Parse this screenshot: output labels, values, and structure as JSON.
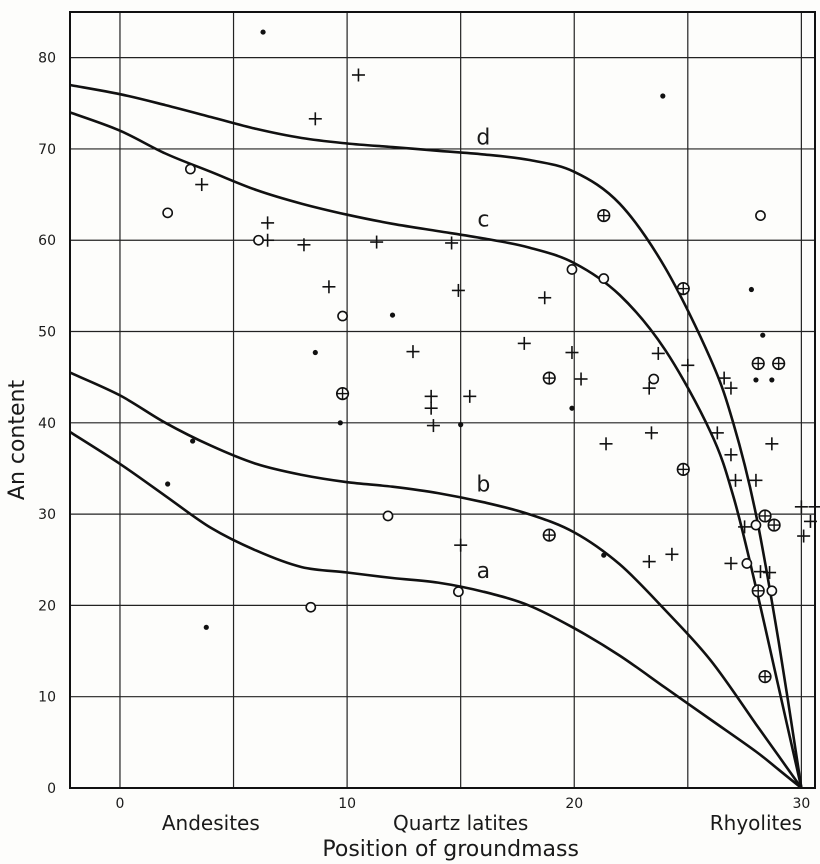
{
  "chart_data": {
    "type": "scatter",
    "xlabel": "Position of groundmass",
    "ylabel": "An content",
    "xlim": [
      -2.2,
      30.6
    ],
    "ylim": [
      0,
      85
    ],
    "xticks": [
      0,
      10,
      20,
      30
    ],
    "yticks": [
      0,
      10,
      20,
      30,
      40,
      50,
      60,
      70,
      80
    ],
    "grid": true,
    "categories": [
      {
        "label": "Andesites",
        "x": 4
      },
      {
        "label": "Quartz latites",
        "x": 15
      },
      {
        "label": "Rhyolites",
        "x": 28
      }
    ],
    "curves": [
      {
        "name": "a",
        "label_at": {
          "x": 16,
          "y": 23
        },
        "points": [
          [
            -2.2,
            39
          ],
          [
            0,
            35.5
          ],
          [
            2,
            32
          ],
          [
            4,
            28.5
          ],
          [
            6,
            26
          ],
          [
            8,
            24.2
          ],
          [
            10,
            23.6
          ],
          [
            12,
            23
          ],
          [
            14,
            22.5
          ],
          [
            16,
            21.5
          ],
          [
            18,
            20
          ],
          [
            20,
            17.5
          ],
          [
            22,
            14.5
          ],
          [
            24,
            11
          ],
          [
            26,
            7.5
          ],
          [
            28,
            4
          ],
          [
            29,
            2
          ],
          [
            30,
            0
          ]
        ]
      },
      {
        "name": "b",
        "label_at": {
          "x": 16,
          "y": 32.5
        },
        "points": [
          [
            -2.2,
            45.5
          ],
          [
            0,
            43
          ],
          [
            2,
            40
          ],
          [
            4,
            37.5
          ],
          [
            6,
            35.5
          ],
          [
            8,
            34.3
          ],
          [
            10,
            33.5
          ],
          [
            12,
            33
          ],
          [
            14,
            32.3
          ],
          [
            16,
            31.3
          ],
          [
            18,
            30
          ],
          [
            20,
            28
          ],
          [
            22,
            24.5
          ],
          [
            24,
            19.5
          ],
          [
            26,
            14
          ],
          [
            28,
            7
          ],
          [
            29,
            3.5
          ],
          [
            30,
            0
          ]
        ]
      },
      {
        "name": "c",
        "label_at": {
          "x": 16,
          "y": 61.5
        },
        "points": [
          [
            -2.2,
            74
          ],
          [
            0,
            72
          ],
          [
            2,
            69.5
          ],
          [
            4,
            67.5
          ],
          [
            6,
            65.5
          ],
          [
            8,
            64
          ],
          [
            10,
            62.8
          ],
          [
            12,
            61.8
          ],
          [
            14,
            61
          ],
          [
            16,
            60.2
          ],
          [
            18,
            59.2
          ],
          [
            20,
            57.5
          ],
          [
            22,
            54
          ],
          [
            24,
            48
          ],
          [
            26,
            39
          ],
          [
            27,
            32
          ],
          [
            28,
            22
          ],
          [
            29,
            11
          ],
          [
            30,
            0
          ]
        ]
      },
      {
        "name": "d",
        "label_at": {
          "x": 16,
          "y": 70.5
        },
        "points": [
          [
            -2.2,
            77
          ],
          [
            0,
            76
          ],
          [
            2,
            74.8
          ],
          [
            4,
            73.5
          ],
          [
            6,
            72.2
          ],
          [
            8,
            71.2
          ],
          [
            10,
            70.6
          ],
          [
            12,
            70.2
          ],
          [
            14,
            69.8
          ],
          [
            16,
            69.4
          ],
          [
            18,
            68.8
          ],
          [
            20,
            67.5
          ],
          [
            22,
            64
          ],
          [
            24,
            57
          ],
          [
            26,
            47
          ],
          [
            27,
            40
          ],
          [
            28,
            30
          ],
          [
            29,
            16
          ],
          [
            30,
            0
          ]
        ]
      }
    ],
    "series": [
      {
        "marker": "dot",
        "points": [
          [
            6.3,
            82.8
          ],
          [
            23.9,
            75.8
          ],
          [
            8.6,
            47.7
          ],
          [
            12,
            51.8
          ],
          [
            9.7,
            40
          ],
          [
            3.2,
            38
          ],
          [
            2.1,
            33.3
          ],
          [
            3.8,
            17.6
          ],
          [
            15,
            39.8
          ],
          [
            19.9,
            41.6
          ],
          [
            21.3,
            25.5
          ],
          [
            27.8,
            54.6
          ],
          [
            28.3,
            49.6
          ],
          [
            28.7,
            44.7
          ],
          [
            28,
            44.7
          ]
        ]
      },
      {
        "marker": "plus",
        "points": [
          [
            10.5,
            78.1
          ],
          [
            8.6,
            73.3
          ],
          [
            3.6,
            66.1
          ],
          [
            6.5,
            61.9
          ],
          [
            6.5,
            60
          ],
          [
            8.1,
            59.5
          ],
          [
            11.3,
            59.8
          ],
          [
            14.6,
            59.7
          ],
          [
            9.2,
            54.9
          ],
          [
            14.9,
            54.5
          ],
          [
            18.7,
            53.7
          ],
          [
            12.9,
            47.8
          ],
          [
            17.8,
            48.7
          ],
          [
            19.9,
            47.7
          ],
          [
            20.3,
            44.8
          ],
          [
            13.7,
            42.9
          ],
          [
            13.7,
            41.6
          ],
          [
            13.8,
            39.7
          ],
          [
            15.4,
            42.9
          ],
          [
            21.4,
            37.7
          ],
          [
            23.3,
            43.8
          ],
          [
            23.4,
            38.9
          ],
          [
            23.7,
            47.6
          ],
          [
            25,
            46.3
          ],
          [
            26.6,
            44.9
          ],
          [
            26.9,
            43.8
          ],
          [
            26.9,
            36.5
          ],
          [
            26.3,
            38.9
          ],
          [
            27.1,
            33.7
          ],
          [
            28,
            33.7
          ],
          [
            28.7,
            37.7
          ],
          [
            27.5,
            28.6
          ],
          [
            28.2,
            23.7
          ],
          [
            28.6,
            23.6
          ],
          [
            26.9,
            24.6
          ],
          [
            23.3,
            24.8
          ],
          [
            24.3,
            25.6
          ],
          [
            15,
            26.6
          ],
          [
            30,
            30.8
          ],
          [
            30.6,
            30.8
          ],
          [
            30.4,
            29.2
          ],
          [
            30.1,
            27.6
          ]
        ]
      },
      {
        "marker": "circle",
        "points": [
          [
            3.1,
            67.8
          ],
          [
            2.1,
            63
          ],
          [
            6.1,
            60
          ],
          [
            9.8,
            51.7
          ],
          [
            21.3,
            55.8
          ],
          [
            19.9,
            56.8
          ],
          [
            28.2,
            62.7
          ],
          [
            23.5,
            44.8
          ],
          [
            11.8,
            29.8
          ],
          [
            8.4,
            19.8
          ],
          [
            14.9,
            21.5
          ],
          [
            27.6,
            24.6
          ],
          [
            28,
            28.8
          ],
          [
            28.7,
            21.6
          ]
        ]
      },
      {
        "marker": "circle-plus",
        "points": [
          [
            21.3,
            62.7
          ],
          [
            24.8,
            54.7
          ],
          [
            9.8,
            43.2
          ],
          [
            18.9,
            44.9
          ],
          [
            18.9,
            27.7
          ],
          [
            24.8,
            34.9
          ],
          [
            28.1,
            46.5
          ],
          [
            29,
            46.5
          ],
          [
            28.4,
            29.8
          ],
          [
            28.8,
            28.8
          ],
          [
            28.1,
            21.6
          ],
          [
            28.4,
            12.2
          ]
        ]
      }
    ]
  }
}
